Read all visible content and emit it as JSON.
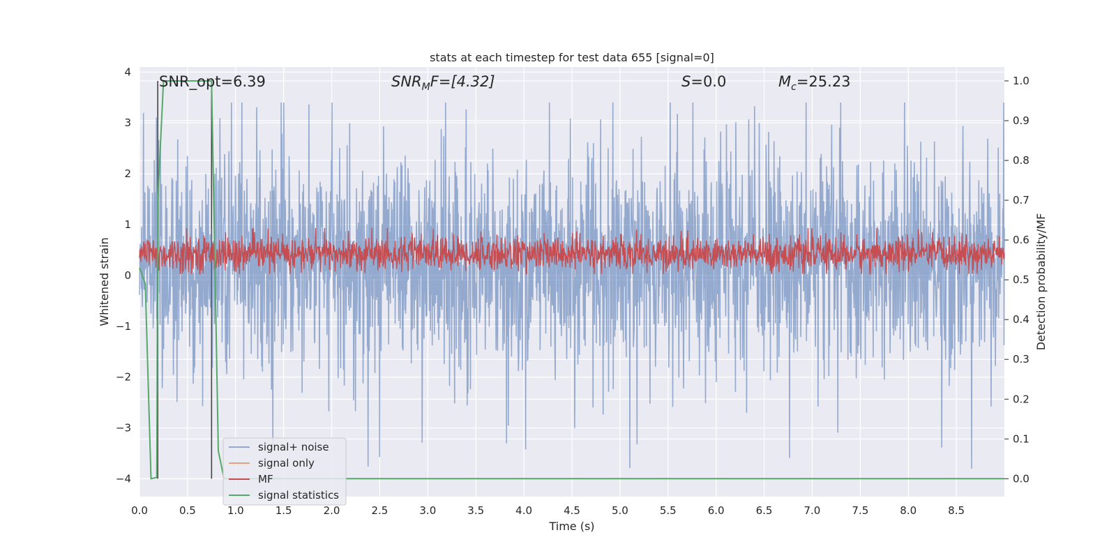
{
  "chart_data": {
    "type": "line",
    "title": "stats at each timestep for test data 655 [signal=0]",
    "xlabel": "Time (s)",
    "ylabel_left": "Whitened strain",
    "ylabel_right": "Detection probability/MF",
    "xlim": [
      0.0,
      9.0
    ],
    "ylim_left": [
      -4.35,
      4.1
    ],
    "ylim_right": [
      -0.045,
      1.035
    ],
    "x_ticks": [
      "0.0",
      "0.5",
      "1.0",
      "1.5",
      "2.0",
      "2.5",
      "3.0",
      "3.5",
      "4.0",
      "4.5",
      "5.0",
      "5.5",
      "6.0",
      "6.5",
      "7.0",
      "7.5",
      "8.0",
      "8.5"
    ],
    "y_left_ticks": [
      "−4",
      "−3",
      "−2",
      "−1",
      "0",
      "1",
      "2",
      "3",
      "4"
    ],
    "y_right_ticks": [
      "0.0",
      "0.1",
      "0.2",
      "0.3",
      "0.4",
      "0.5",
      "0.6",
      "0.7",
      "0.8",
      "0.9",
      "1.0"
    ],
    "grid": true,
    "background": "#eaeaf2",
    "annotations": {
      "snr_opt": "SNR_opt=6.39",
      "snr_mf": "SNR<sub>M</sub>F=[4.32]",
      "snr_mf_base": "SNR",
      "snr_mf_sub": "M",
      "snr_mf_tail": "F=[4.32]",
      "s_base": "S",
      "s_tail": "=0.0",
      "mc_base": "M",
      "mc_sub": "c",
      "mc_tail": "=25.23"
    },
    "vertical_markers_s": [
      0.19,
      0.75
    ],
    "series": [
      {
        "name": "signal+ noise",
        "color": "#4c72b0",
        "opacity": 0.55,
        "axis": "left",
        "envelope_typical": [
          -1.7,
          2.2
        ],
        "envelope_extreme": [
          -3.8,
          3.4
        ],
        "sample_rate_hz": 2048
      },
      {
        "name": "signal only",
        "color": "#e8a082",
        "axis": "left",
        "values": "flat (no signal)"
      },
      {
        "name": "MF",
        "color": "#c44e52",
        "axis": "right",
        "typical_range": [
          0.52,
          0.61
        ],
        "max": 0.63
      },
      {
        "name": "signal statistics",
        "color": "#55a868",
        "axis": "right",
        "x": [
          0.0,
          0.06,
          0.12,
          0.18,
          0.19,
          0.25,
          0.35,
          0.45,
          0.55,
          0.65,
          0.75,
          0.82,
          0.88,
          1.0,
          2.0,
          3.0,
          4.0,
          5.0,
          6.0,
          7.0,
          8.0,
          9.0
        ],
        "y": [
          0.53,
          0.49,
          0.0,
          0.003,
          0.7,
          1.0,
          1.0,
          1.0,
          1.0,
          1.0,
          1.0,
          0.07,
          0.0,
          0.0,
          0.0,
          0.0,
          0.0,
          0.0,
          0.0,
          0.0,
          0.0,
          0.0
        ]
      }
    ],
    "legend_position": "lower-left",
    "legend_entries": [
      "signal+ noise",
      "signal only",
      "MF",
      "signal statistics"
    ]
  }
}
